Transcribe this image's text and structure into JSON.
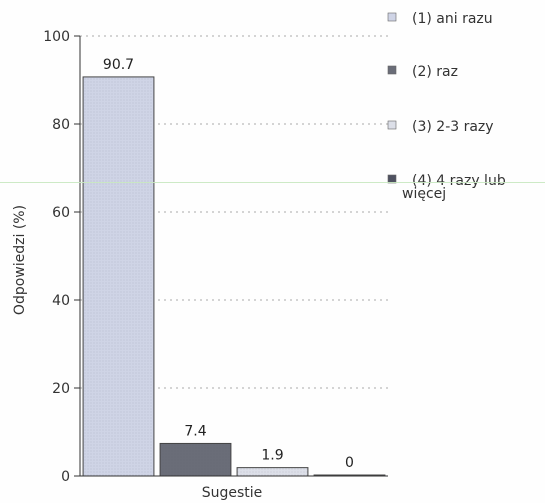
{
  "chart_data": {
    "type": "bar",
    "xlabel": "Sugestie",
    "ylabel": "Odpowiedzi (%)",
    "ylim": [
      0,
      100
    ],
    "yticks": [
      0,
      20,
      40,
      60,
      80,
      100
    ],
    "grid": true,
    "legend_position": "right",
    "series": [
      {
        "name": "(1) ani razu",
        "value": 90.7,
        "label": "90.7",
        "color": "#cfd4e6"
      },
      {
        "name": "(2) raz",
        "value": 7.4,
        "label": "7.4",
        "color": "#6a6d78"
      },
      {
        "name": "(3) 2-3 razy",
        "value": 1.9,
        "label": "1.9",
        "color": "#dcdfe8"
      },
      {
        "name": "(4) 4 razy lub więcej",
        "value": 0,
        "label": "0",
        "color": "#4e5160"
      }
    ]
  }
}
